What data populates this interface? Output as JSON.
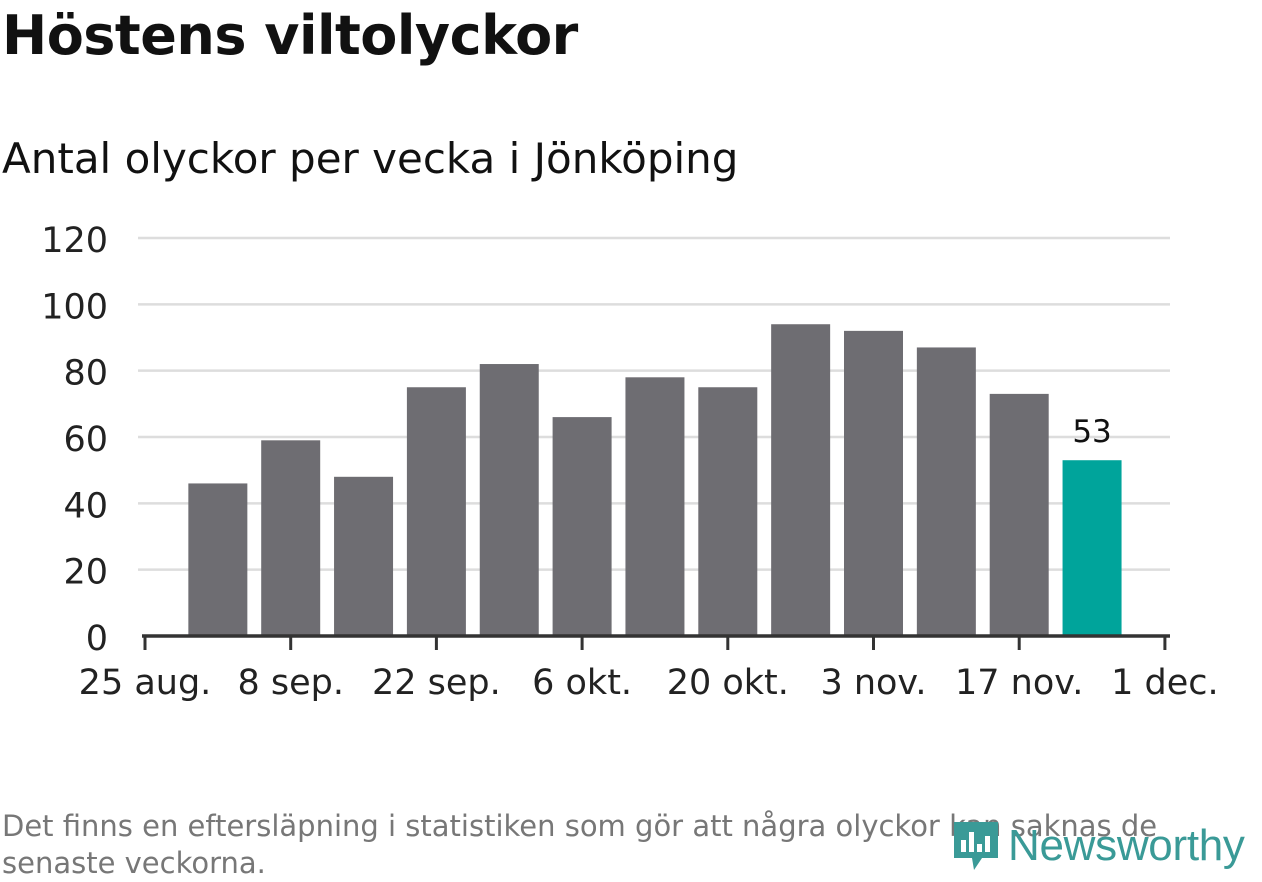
{
  "header": {
    "title": "Höstens viltolyckor",
    "subtitle": "Antal olyckor per vecka i Jönköping"
  },
  "footer": {
    "note": "Det finns en eftersläpning i statistiken som gör att några olyckor kan saknas de senaste veckorna.",
    "brand": "Newsworthy",
    "brand_icon": "newsworthy-logo-icon"
  },
  "colors": {
    "bar": "#6e6d72",
    "highlight": "#00a49b",
    "grid": "#dddddd",
    "axis": "#333333",
    "brand": "#3a9a97"
  },
  "chart_data": {
    "type": "bar",
    "x_ticks": [
      "25 aug.",
      "8 sep.",
      "22 sep.",
      "6 okt.",
      "20 okt.",
      "3 nov.",
      "17 nov.",
      "1 dec."
    ],
    "week_starts": [
      "1 sep.",
      "8 sep.",
      "15 sep.",
      "22 sep.",
      "29 sep.",
      "6 okt.",
      "13 okt.",
      "20 okt.",
      "27 okt.",
      "3 nov.",
      "10 nov.",
      "17 nov.",
      "24 nov."
    ],
    "values": [
      46,
      59,
      48,
      75,
      82,
      66,
      78,
      75,
      94,
      92,
      87,
      73,
      53
    ],
    "highlight_index": 12,
    "data_labels": [
      {
        "index": 12,
        "text": "53"
      }
    ],
    "y_ticks": [
      0,
      20,
      40,
      60,
      80,
      100,
      120
    ],
    "ylim": [
      0,
      120
    ],
    "grid": true,
    "legend": "none"
  }
}
